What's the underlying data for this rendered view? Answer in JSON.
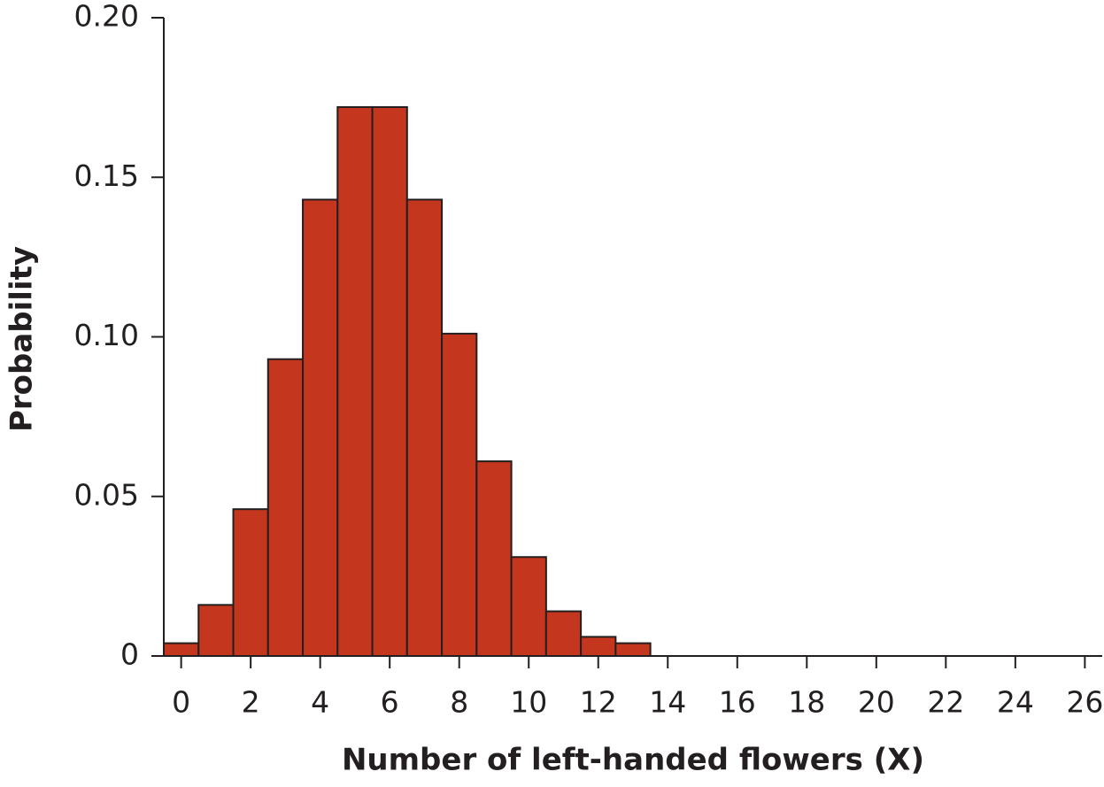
{
  "chart_data": {
    "type": "bar",
    "x_label": "Number of left-handed flowers (X)",
    "y_label": "Probability",
    "x": [
      0,
      1,
      2,
      3,
      4,
      5,
      6,
      7,
      8,
      9,
      10,
      11,
      12,
      13
    ],
    "values": [
      0.004,
      0.016,
      0.046,
      0.093,
      0.143,
      0.172,
      0.172,
      0.143,
      0.101,
      0.061,
      0.031,
      0.014,
      0.006,
      0.004
    ],
    "color": "#c4361d",
    "xlim": [
      -0.5,
      26.5
    ],
    "xticks": [
      0,
      2,
      4,
      6,
      8,
      10,
      12,
      14,
      16,
      18,
      20,
      22,
      24,
      26
    ],
    "ylim": [
      0,
      0.2
    ],
    "yticks": [
      0,
      0.05,
      {
        "value": 0.1,
        "label": "0.10"
      },
      0.15,
      {
        "value": 0.2,
        "label": "0.20"
      }
    ],
    "grid": false
  }
}
